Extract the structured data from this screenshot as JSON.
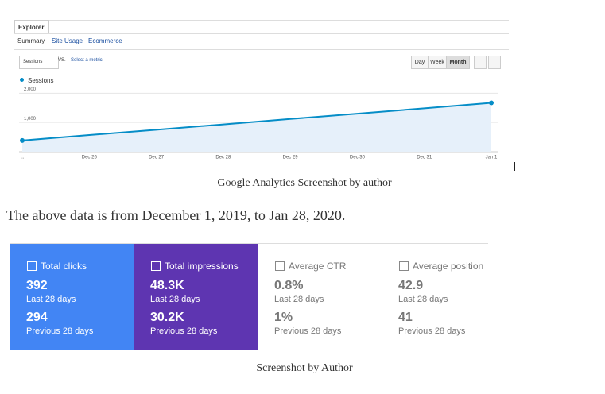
{
  "analytics": {
    "tab": "Explorer",
    "subnav": [
      "Summary",
      "Site Usage",
      "Ecommerce"
    ],
    "metric": "Sessions",
    "vs": "VS.",
    "select_metric": "Select a metric",
    "periods": [
      "Day",
      "Week",
      "Month"
    ],
    "chart_data": {
      "type": "line",
      "categories": [
        "...",
        "Dec 26",
        "Dec 27",
        "Dec 28",
        "Dec 29",
        "Dec 30",
        "Dec 31",
        "Jan 1"
      ],
      "series": [
        {
          "name": "Sessions",
          "color": "#058dc7",
          "values": [
            385,
            570,
            750,
            935,
            1120,
            1300,
            1485,
            1670
          ]
        }
      ],
      "ylim": [
        0,
        2200
      ],
      "yticks": [
        {
          "value": 1000,
          "label": "1,000"
        },
        {
          "value": 2000,
          "label": "2,000"
        }
      ],
      "grid": true
    }
  },
  "caption1": "Google Analytics Screenshot by author",
  "body": "The above data is from December 1, 2019, to Jan 28, 2020.",
  "cards": [
    {
      "label": "Total clicks",
      "value": "392",
      "period": "Last 28 days",
      "prev_value": "294",
      "prev_period": "Previous 28 days",
      "color": "#4285f4"
    },
    {
      "label": "Total impressions",
      "value": "48.3K",
      "period": "Last 28 days",
      "prev_value": "30.2K",
      "prev_period": "Previous 28 days",
      "color": "#5e35b1"
    },
    {
      "label": "Average CTR",
      "value": "0.8%",
      "period": "Last 28 days",
      "prev_value": "1%",
      "prev_period": "Previous 28 days",
      "color": "#ffffff"
    },
    {
      "label": "Average position",
      "value": "42.9",
      "period": "Last 28 days",
      "prev_value": "41",
      "prev_period": "Previous 28 days",
      "color": "#ffffff"
    }
  ],
  "caption2": "Screenshot by Author"
}
